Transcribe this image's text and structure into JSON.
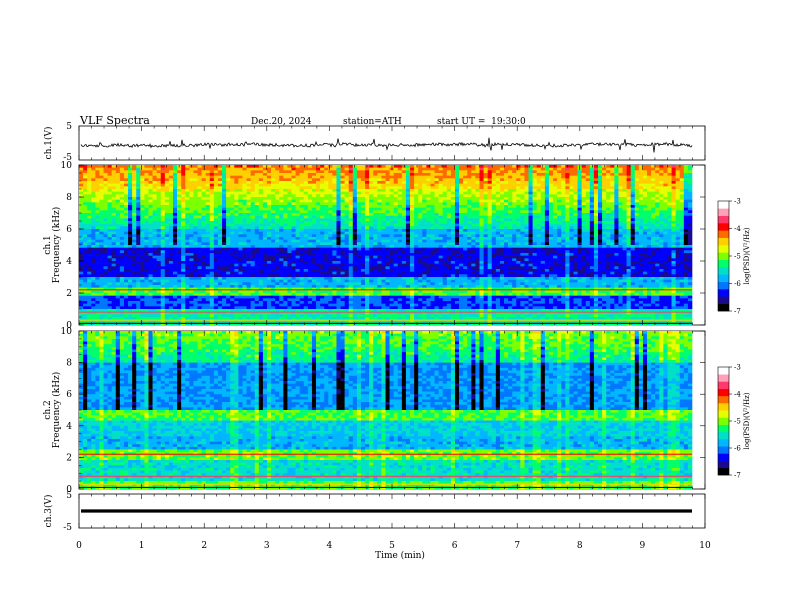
{
  "header": {
    "title": "VLF Spectra",
    "date": "Dec.20, 2024",
    "station": "station=ATH",
    "start": "start UT =  19:30:0"
  },
  "colors": {
    "palette": [
      "#000000",
      "#1a0a8c",
      "#0000ff",
      "#0077ff",
      "#00b7ff",
      "#00e0c8",
      "#00ff6a",
      "#7dff00",
      "#e6ff00",
      "#ffd000",
      "#ff6a00",
      "#ff0000",
      "#ff3a6a",
      "#ff9fb8",
      "#ffffff"
    ],
    "axis": "#000000",
    "trace": "#000000"
  },
  "chart_data": [
    {
      "type": "line",
      "ylabel": "ch.1(V)",
      "ylim": [
        -5,
        5
      ],
      "yticks": [
        "5",
        "-5"
      ],
      "xlim": [
        0,
        10
      ],
      "description_series": "noisy waveform near 0 V with small spikes",
      "values_level_v": 0.0
    },
    {
      "type": "heatmap",
      "ylabel": "Frequency (kHz)",
      "channel": "ch.1",
      "ylim": [
        0,
        10
      ],
      "yticks": [
        "0",
        "2",
        "4",
        "6",
        "8",
        "10"
      ],
      "xlim": [
        0,
        9.8
      ],
      "colorbar": {
        "label": "log(PSD)(V²/Hz)",
        "range": [
          -7,
          -3
        ],
        "ticks": [
          "-3",
          "-4",
          "-5",
          "-6",
          "-7"
        ]
      }
    },
    {
      "type": "heatmap",
      "ylabel": "Frequency (kHz)",
      "channel": "ch.2",
      "ylim": [
        0,
        10
      ],
      "yticks": [
        "0",
        "2",
        "4",
        "6",
        "8",
        "10"
      ],
      "xlim": [
        0,
        9.8
      ],
      "colorbar": {
        "label": "log(PSD)(V²/Hz)",
        "range": [
          -7,
          -3
        ],
        "ticks": [
          "-3",
          "-4",
          "-5",
          "-6",
          "-7"
        ]
      }
    },
    {
      "type": "line",
      "ylabel": "ch.3(V)",
      "ylim": [
        -5,
        5
      ],
      "yticks": [
        "5",
        "-5"
      ],
      "xlim": [
        0,
        10
      ],
      "values_level_v": 0.0,
      "xlabel": "Time (min)",
      "xticks": [
        "0",
        "1",
        "2",
        "3",
        "4",
        "5",
        "6",
        "7",
        "8",
        "9",
        "10"
      ]
    }
  ]
}
